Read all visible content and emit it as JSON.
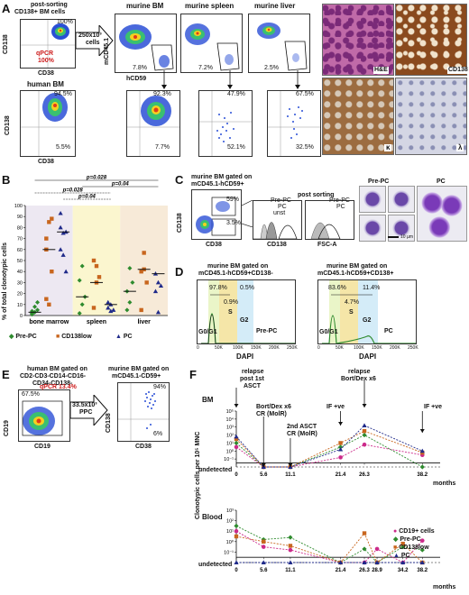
{
  "panels": {
    "A": {
      "letter": "A",
      "post_sorting": "post-sorting",
      "post_sorting_sub": "CD138+ BM cells",
      "sort_pct": "100%",
      "qpcr": "qPCR",
      "qpcr_pct": "100%",
      "cell_count": "250x10³",
      "cell_count_sub": "cells",
      "murine_bm": "murine BM",
      "murine_spleen": "murine spleen",
      "murine_liver": "murine liver",
      "human_bm": "human BM",
      "ax_cd138": "CD138",
      "ax_cd38": "CD38",
      "ax_mcd45": "mCD45.1",
      "ax_hcd59": "hCD59",
      "gate_bm": "7.8%",
      "gate_spleen": "7.2%",
      "gate_liver": "2.5%",
      "human_top": "94.5%",
      "human_bottom": "5.5%",
      "bm_top": "92.3%",
      "bm_bottom": "7.7%",
      "spleen_top": "47.9%",
      "spleen_bottom": "52.1%",
      "liver_top": "67.5%",
      "liver_bottom": "32.5%",
      "ihc_he": "H&E",
      "ihc_cd138": "CD138",
      "ihc_kappa": "κ",
      "ihc_lambda": "λ"
    },
    "B": {
      "letter": "B",
      "ylabel": "% of total clonotypic cells",
      "p1": "p=0.028",
      "p2": "p=0.028",
      "p3": "p=0.04",
      "p4": "p=0.04",
      "legend_prepc": "Pre-PC",
      "legend_cd138low": "CD138low",
      "legend_pc": "PC"
    },
    "C": {
      "letter": "C",
      "title": "murine BM gated on",
      "title2": "mCD45.1-hCD59+",
      "post_sorting": "post sorting",
      "gate_top": "59%",
      "gate_bottom": "3.5%",
      "prepc": "Pre-PC",
      "pc": "PC",
      "unst": "unst",
      "ax_cd138": "CD138",
      "ax_cd38": "CD38",
      "ax_fsc": "FSC-A",
      "img_prepc": "Pre-PC",
      "img_pc": "PC",
      "scale": "10 µm"
    },
    "D": {
      "letter": "D",
      "title_left": "murine BM gated on",
      "title_left2": "mCD45.1-hCD59+CD138-",
      "title_right": "murine BM gated on",
      "title_right2": "mCD45.1-hCD59+CD138+",
      "left_g01": "97.8%",
      "left_g2": "0.5%",
      "left_s": "0.9%",
      "right_g01": "83.6%",
      "right_g2": "11.4%",
      "right_s": "4.7%",
      "s": "S",
      "g2": "G2",
      "g0g1": "G0/G1",
      "left_name": "Pre-PC",
      "right_name": "PC",
      "ax_dapi": "DAPI",
      "ticks": [
        "0",
        "50K",
        "100K",
        "150K",
        "200K",
        "250K"
      ]
    },
    "E": {
      "letter": "E",
      "title": "human BM gated on",
      "title2": "CD2-CD3-CD14-CD16-",
      "title3": "CD34-CD138-",
      "gate_pct": "67.5%",
      "qpcr": "qPCR 13.4%",
      "count": "33.5x10³",
      "count_sub": "PPC",
      "murine": "murine BM gated on",
      "murine2": "mCD45.1-CD59+",
      "top_pct": "94%",
      "bottom_pct": "6%",
      "ax_cd19": "CD19",
      "ax_cd138": "CD138",
      "ax_cd38": "CD38"
    },
    "F": {
      "letter": "F",
      "ylabel": "Clonotypic cells per 10⁵ MNC",
      "bm": "BM",
      "blood": "Blood",
      "undetected": "undetected",
      "months": "months",
      "ann_relapse1": "relapse",
      "ann_relapse1b": "post 1st",
      "ann_relapse1c": "ASCT",
      "ann_bort": "Bort/Dex x6",
      "ann_cr": "CR (MolR)",
      "ann_2nd": "2nd ASCT",
      "ann_2nd_cr": "CR (MolR)",
      "ann_if": "IF +ve",
      "ann_relapse2": "relapse",
      "ann_relapse2b": "Bort/Dex x6",
      "ann_if2": "IF +ve",
      "legend": [
        "CD19+ cells",
        "Pre-PC",
        "CD138low",
        "PC"
      ]
    }
  },
  "chart_data": [
    {
      "type": "scatter",
      "title": "",
      "ylabel": "% of total clonotypic cells",
      "categories": [
        "bone marrow",
        "spleen",
        "liver"
      ],
      "ylim": [
        0,
        100
      ],
      "yticks": [
        0,
        10,
        20,
        30,
        40,
        50,
        60,
        70,
        80,
        90,
        100
      ],
      "series": [
        {
          "name": "Pre-PC",
          "color": "#2e8b2e",
          "values": [
            [
              2,
              3,
              5,
              1,
              8,
              12,
              4
            ],
            [
              32,
              10,
              17,
              2,
              45
            ],
            [
              22,
              12,
              30,
              5,
              43
            ]
          ],
          "medians": [
            3,
            17,
            22
          ]
        },
        {
          "name": "CD138low",
          "color": "#c8661e",
          "values": [
            [
              15,
              10,
              40,
              70,
              85,
              88,
              60
            ],
            [
              50,
              30,
              35,
              7,
              45
            ],
            [
              40,
              42,
              30,
              5,
              57
            ]
          ],
          "medians": [
            60,
            30,
            42
          ]
        },
        {
          "name": "PC",
          "color": "#1f2a8a",
          "values": [
            [
              93,
              75,
              76,
              60,
              55,
              40,
              80
            ],
            [
              12,
              10,
              5,
              7,
              4
            ],
            [
              38,
              30,
              27,
              22,
              3
            ]
          ],
          "medians": [
            76,
            10,
            38
          ]
        }
      ]
    },
    {
      "type": "line",
      "title": "BM",
      "ylabel": "Clonotypic cells per 10⁵ MNC",
      "yticks": [
        "undetected",
        "10⁻¹",
        "10⁰",
        "10¹",
        "10²",
        "10³",
        "10⁴",
        "10⁵"
      ],
      "xlabel": "months",
      "x": [
        0,
        5.6,
        11.1,
        21.4,
        26.3,
        38.2
      ],
      "series": [
        {
          "name": "CD19+ cells",
          "color": "#cc2a8a",
          "values": [
            1.5,
            -1,
            -1,
            0.2,
            1.8,
            0.5
          ]
        },
        {
          "name": "Pre-PC",
          "color": "#2e8b2e",
          "values": [
            2,
            -1,
            -1,
            1.5,
            3,
            -1
          ]
        },
        {
          "name": "CD138low",
          "color": "#c8661e",
          "values": [
            2.5,
            -1,
            -1,
            2,
            3.5,
            0.8
          ]
        },
        {
          "name": "PC",
          "color": "#1f2a8a",
          "values": [
            2.8,
            -1,
            -1,
            1.2,
            4.2,
            1
          ]
        }
      ]
    },
    {
      "type": "line",
      "title": "Blood",
      "ylabel": "Clonotypic cells per 10⁵ MNC",
      "yticks": [
        "undetected",
        "10⁻¹",
        "10⁰",
        "10¹",
        "10²",
        "10³"
      ],
      "xlabel": "months",
      "x": [
        0,
        5.6,
        11.1,
        21.4,
        26.3,
        28.9,
        34.2,
        38.2
      ],
      "series": [
        {
          "name": "CD19+ cells",
          "color": "#cc2a8a",
          "values": [
            2,
            0.5,
            0.2,
            -1,
            -1,
            0.3,
            -1,
            1.1
          ]
        },
        {
          "name": "Pre-PC",
          "color": "#2e8b2e",
          "values": [
            2.5,
            1.2,
            1.4,
            -1,
            0.3,
            -1,
            0.5,
            0.2
          ]
        },
        {
          "name": "CD138low",
          "color": "#c8661e",
          "values": [
            1.5,
            1,
            0.6,
            -1,
            1.8,
            -1,
            0.8,
            -1
          ]
        },
        {
          "name": "PC",
          "color": "#1f2a8a",
          "values": [
            -1,
            -1,
            -1,
            -1,
            -1,
            -1,
            -1,
            -1
          ]
        }
      ]
    }
  ]
}
